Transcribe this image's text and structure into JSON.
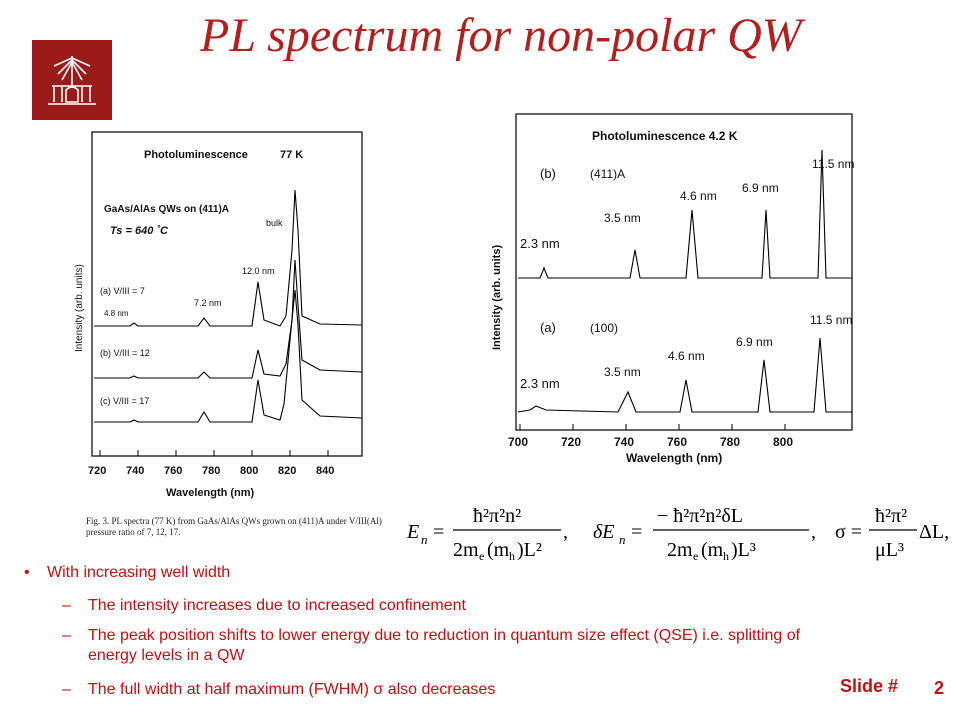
{
  "title": "PL spectrum for non-polar QW",
  "left_figure": {
    "header": "Photoluminescence",
    "temp": "77 K",
    "sample": "GaAs/AlAs QWs on (411)A",
    "ts": "Ts = 640 ˚C",
    "ylabel": "Intensity (arb. units)",
    "xlabel": "Wavelength (nm)",
    "xticks": [
      "720",
      "740",
      "760",
      "780",
      "800",
      "820",
      "840"
    ],
    "labels": {
      "bulk": "bulk",
      "w12": "12.0 nm",
      "w72": "7.2 nm",
      "w48": "4.8 nm"
    },
    "traces": [
      "(a) V/III = 7",
      "(b) V/III = 12",
      "(c) V/III = 17"
    ]
  },
  "caption": "Fig. 3. PL spectra (77 K) from GaAs/AlAs QWs grown on (411)A under V/III(Al) pressure ratio of 7, 12, 17.",
  "right_figure": {
    "header": "Photoluminescence 4.2 K",
    "ylabel": "Intensity (arb. units)",
    "xlabel": "Wavelength (nm)",
    "xticks": [
      "700",
      "720",
      "740",
      "760",
      "780",
      "800"
    ],
    "b": {
      "label": "(b)",
      "orient": "(411)A",
      "w23": "2.3 nm",
      "w35": "3.5 nm",
      "w46": "4.6 nm",
      "w69": "6.9 nm",
      "w115": "11.5 nm"
    },
    "a": {
      "label": "(a)",
      "orient": "(100)",
      "w23": "2.3 nm",
      "w35": "3.5 nm",
      "w46": "4.6 nm",
      "w69": "6.9 nm",
      "w115": "11.5 nm"
    }
  },
  "bullets": {
    "main": "With increasing well width",
    "sub": [
      "The intensity increases due to increased confinement",
      "The peak position shifts to lower energy due to reduction in quantum size effect (QSE) i.e. splitting of energy levels in a QW",
      "The full width at half maximum (FWHM) σ also decreases"
    ]
  },
  "footer": {
    "label": "Slide #",
    "number": "2"
  }
}
